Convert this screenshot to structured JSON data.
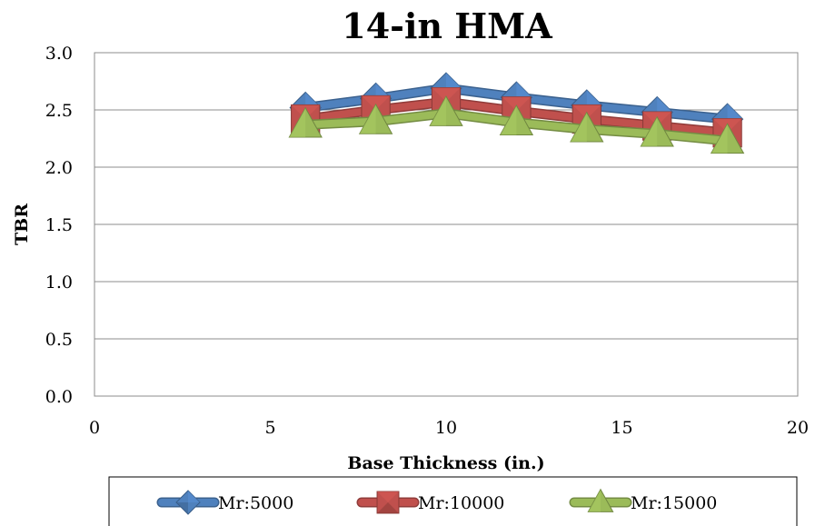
{
  "chart_data": {
    "type": "line",
    "title": "14-in HMA",
    "xlabel": "Base Thickness (in.)",
    "ylabel": "TBR",
    "xlim": [
      0,
      20
    ],
    "ylim": [
      0,
      3.0
    ],
    "xticks": [
      "0",
      "5",
      "10",
      "15",
      "20"
    ],
    "yticks": [
      "0.0",
      "0.5",
      "1.0",
      "1.5",
      "2.0",
      "2.5",
      "3.0"
    ],
    "grid": "horizontal",
    "legend": "bottom",
    "x": [
      6,
      8,
      10,
      12,
      14,
      16,
      18
    ],
    "series": [
      {
        "name": "Mr:5000",
        "values": [
          2.52,
          2.6,
          2.69,
          2.61,
          2.54,
          2.48,
          2.42
        ],
        "color": "#4f81bd",
        "marker": "diamond"
      },
      {
        "name": "Mr:10000",
        "values": [
          2.42,
          2.5,
          2.57,
          2.49,
          2.42,
          2.36,
          2.3
        ],
        "color": "#c0504d",
        "marker": "square"
      },
      {
        "name": "Mr:15000",
        "values": [
          2.37,
          2.4,
          2.47,
          2.39,
          2.33,
          2.29,
          2.23
        ],
        "color": "#9bbb59",
        "marker": "triangle"
      }
    ]
  }
}
